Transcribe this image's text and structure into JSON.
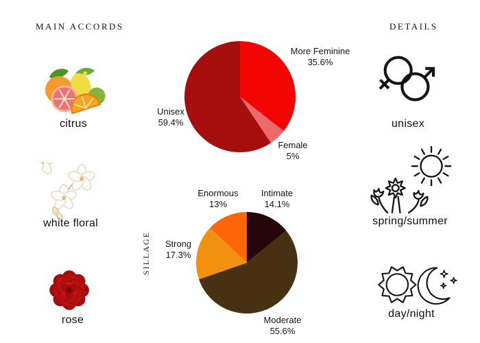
{
  "page": {
    "background": "#ffffff",
    "text_color": "#141414"
  },
  "main_accords": {
    "title": "MAIN ACCORDS",
    "items": [
      {
        "label": "citrus",
        "icon": "citrus-image"
      },
      {
        "label": "white floral",
        "icon": "white-floral-image"
      },
      {
        "label": "rose",
        "icon": "rose-image"
      }
    ]
  },
  "details": {
    "title": "DETAILS",
    "items": [
      {
        "label": "unisex",
        "icon": "unisex-gender-icon"
      },
      {
        "label": "spring/summer",
        "icon": "spring-summer-icon"
      },
      {
        "label": "day/night",
        "icon": "day-night-icon"
      }
    ]
  },
  "chart_data": [
    {
      "type": "pie",
      "name": "gender-votes",
      "title": "",
      "start_angle": "12-oclock",
      "direction": "clockwise",
      "legend_position": "around-slices",
      "slices": [
        {
          "label": "More Feminine",
          "pct_label": "35.6%",
          "value": 35.6,
          "color": "#F20500"
        },
        {
          "label": "Female",
          "pct_label": "5%",
          "value": 5,
          "color": "#EC6A6A"
        },
        {
          "label": "Unisex",
          "pct_label": "59.4%",
          "value": 59.4,
          "color": "#A60D0D"
        }
      ]
    },
    {
      "type": "pie",
      "name": "sillage-votes",
      "axis_label": "SILLAGE",
      "start_angle": "12-oclock",
      "direction": "clockwise",
      "legend_position": "around-slices",
      "slices": [
        {
          "label": "Intimate",
          "pct_label": "14.1%",
          "value": 14.1,
          "color": "#260608"
        },
        {
          "label": "Moderate",
          "pct_label": "55.6%",
          "value": 55.6,
          "color": "#483113"
        },
        {
          "label": "Strong",
          "pct_label": "17.3%",
          "value": 17.3,
          "color": "#F0910F"
        },
        {
          "label": "Enormous",
          "pct_label": "13%",
          "value": 13,
          "color": "#FF6608"
        }
      ]
    }
  ]
}
